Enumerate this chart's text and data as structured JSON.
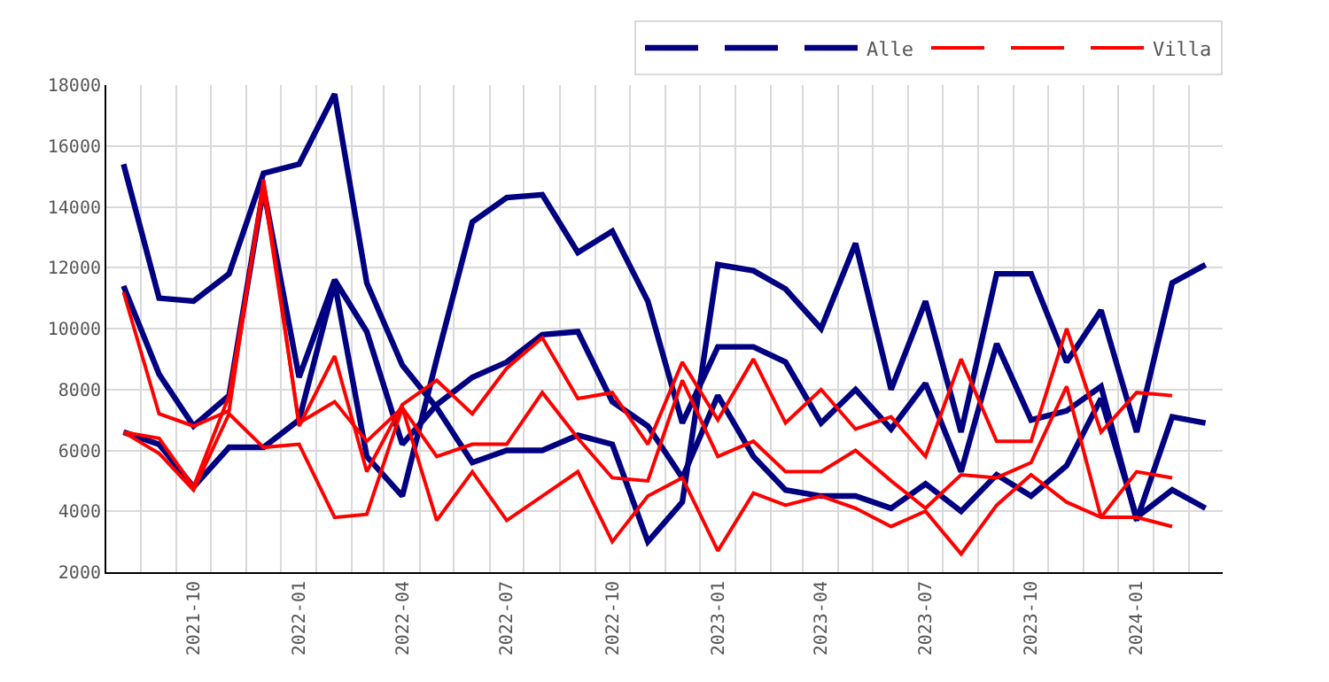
{
  "chart_data": {
    "type": "line",
    "x": [
      "2021-08",
      "2021-09",
      "2021-10",
      "2021-11",
      "2021-12",
      "2022-01",
      "2022-02",
      "2022-03",
      "2022-04",
      "2022-05",
      "2022-06",
      "2022-07",
      "2022-08",
      "2022-09",
      "2022-10",
      "2022-11",
      "2022-12",
      "2023-01",
      "2023-02",
      "2023-03",
      "2023-04",
      "2023-05",
      "2023-06",
      "2023-07",
      "2023-08",
      "2023-09",
      "2023-10",
      "2023-11",
      "2023-12",
      "2024-01",
      "2024-02",
      "2024-03"
    ],
    "series": [
      {
        "color": "#000080",
        "values": [
          15400,
          11000,
          10900,
          11800,
          15100,
          15400,
          17700,
          11500,
          8800,
          7400,
          5600,
          6000,
          6000,
          6500,
          6200,
          3000,
          4300,
          12100,
          11900,
          11300,
          10000,
          12800,
          8000,
          10900,
          6600,
          11800,
          11800,
          8900,
          10600,
          6600,
          11500,
          12100
        ]
      },
      {
        "color": "#000080",
        "values": [
          11400,
          8500,
          6800,
          7800,
          14600,
          8400,
          11600,
          9900,
          6200,
          7500,
          8400,
          8900,
          9800,
          9900,
          7600,
          6800,
          5100,
          7800,
          5800,
          4700,
          4500,
          4500,
          4100,
          4900,
          4000,
          5200,
          4500,
          5500,
          7700,
          3800,
          4700,
          4100
        ]
      },
      {
        "name": "Alle",
        "color": "#000080",
        "values": [
          6600,
          6200,
          4800,
          6100,
          6100,
          7000,
          11500,
          5800,
          4500,
          9000,
          13500,
          14300,
          14400,
          12500,
          13200,
          10900,
          6900,
          9400,
          9400,
          8900,
          6900,
          8000,
          6700,
          8200,
          5300,
          9500,
          7000,
          7300,
          8100,
          3700,
          7100,
          6900
        ]
      },
      {
        "color": "#ff0000",
        "values": [
          11200,
          7200,
          6800,
          7300,
          14900,
          6800,
          9100,
          5300,
          7500,
          8300,
          7200,
          8700,
          9700,
          7700,
          7900,
          6200,
          8900,
          7000,
          9000,
          6900,
          8000,
          6700,
          7100,
          5800,
          9000,
          6300,
          6300,
          10000,
          6600,
          7900,
          7800,
          null
        ]
      },
      {
        "color": "#ff0000",
        "values": [
          6600,
          6400,
          4800,
          7800,
          14600,
          6900,
          7600,
          6300,
          7400,
          5800,
          6200,
          6200,
          7900,
          6400,
          5100,
          5000,
          8300,
          5800,
          6300,
          5300,
          5300,
          6000,
          5000,
          4100,
          5200,
          5100,
          5600,
          8100,
          3800,
          5300,
          5100,
          null
        ]
      },
      {
        "name": "Villa",
        "color": "#ff0000",
        "values": [
          6600,
          5900,
          4700,
          7200,
          6100,
          6200,
          3800,
          3900,
          7400,
          3700,
          5300,
          3700,
          4500,
          5300,
          3000,
          4500,
          5100,
          2700,
          4600,
          4200,
          4500,
          4100,
          3500,
          4000,
          2600,
          4200,
          5200,
          4300,
          3800,
          3800,
          3500,
          null
        ]
      }
    ],
    "xlim": [
      "2021-07-17",
      "2024-03-16"
    ],
    "xticks": [
      "2021-10",
      "2022-01",
      "2022-04",
      "2022-07",
      "2022-10",
      "2023-01",
      "2023-04",
      "2023-07",
      "2023-10",
      "2024-01"
    ],
    "ylim": [
      2000,
      18000
    ],
    "yticks": [
      2000,
      4000,
      6000,
      8000,
      10000,
      12000,
      14000,
      16000,
      18000
    ],
    "grid": true,
    "legend": "top right",
    "marker": "none",
    "line_style": "solid"
  }
}
